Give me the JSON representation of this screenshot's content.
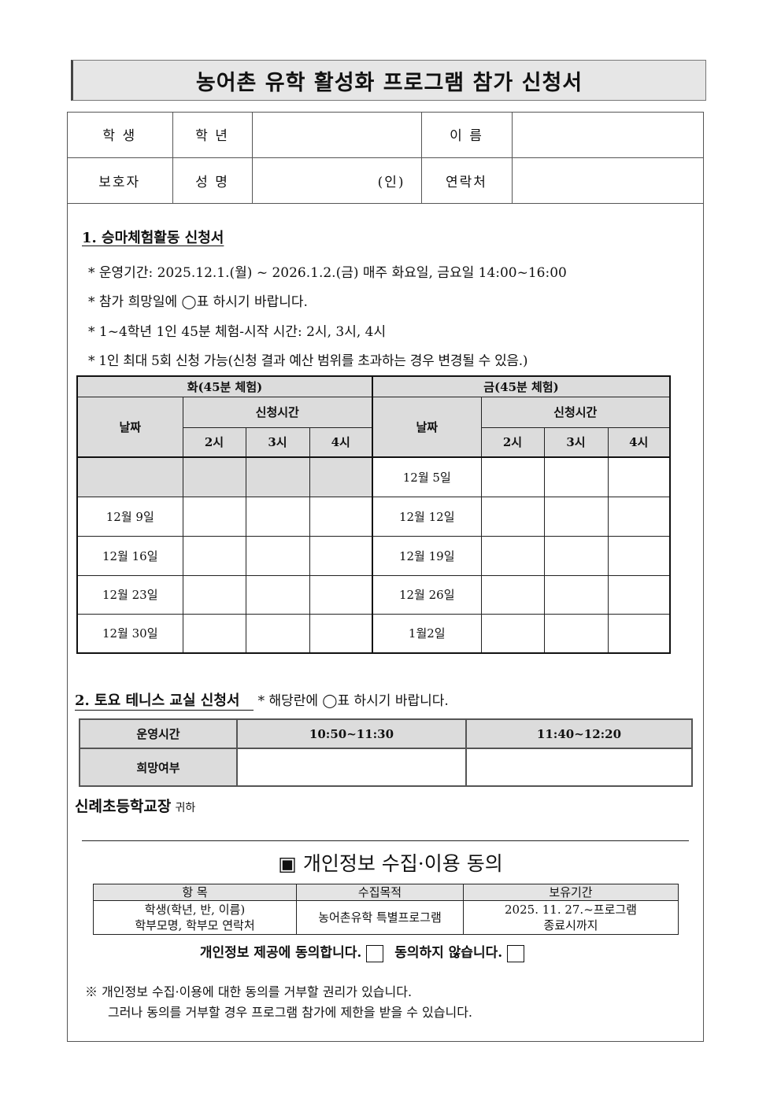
{
  "title": "농어촌 유학 활성화 프로그램 참가 신청서",
  "info": {
    "student": "학 생",
    "grade": "학 년",
    "name": "이 름",
    "guardian": "보호자",
    "guardian_name": "성 명",
    "seal": "(인)",
    "contact": "연락처"
  },
  "section1": {
    "heading": "1. 승마체험활동 신청서",
    "bullets": [
      "* 운영기간: 2025.12.1.(월) ~ 2026.1.2.(금) 매주 화요일, 금요일 14:00~16:00",
      "* 참가 희망일에 ◯표 하시기 바랍니다.",
      "* 1~4학년 1인 45분 체험-시작 시간: 2시, 3시, 4시",
      "* 1인 최대 5회 신청 가능(신청 결과 예산 범위를 초과하는 경우 변경될 수 있음.)"
    ],
    "tue_header": "화(45분 체험)",
    "fri_header": "금(45분 체험)",
    "date_label": "날짜",
    "time_label": "신청시간",
    "times": [
      "2시",
      "3시",
      "4시"
    ],
    "tue_dates": [
      "",
      "12월 9일",
      "12월 16일",
      "12월 23일",
      "12월 30일"
    ],
    "fri_dates": [
      "12월 5일",
      "12월 12일",
      "12월 19일",
      "12월 26일",
      "1월2일"
    ]
  },
  "section2": {
    "heading": "2. 토요 테니스 교실 신청서",
    "note": "* 해당란에 ◯표 하시기 바랍니다.",
    "time_label": "운영시간",
    "wish_label": "희망여부",
    "slots": [
      "10:50~11:30",
      "11:40~12:20"
    ]
  },
  "addressee": "신례초등학교장",
  "addressee_suffix": "귀하",
  "consent": {
    "title": "▣ 개인정보 수집·이용 동의",
    "headers": [
      "항 목",
      "수집목적",
      "보유기간"
    ],
    "item": [
      "학생(학년, 반, 이름)",
      "학부모명, 학부모 연락처"
    ],
    "purpose": "농어촌유학 특별프로그램",
    "period": [
      "2025. 11. 27.~프로그램",
      "종료시까지"
    ],
    "agree": "개인정보 제공에 동의합니다.",
    "disagree": "동의하지 않습니다.",
    "notes": [
      "※ 개인정보 수집·이용에 대한 동의를 거부할 권리가 있습니다.",
      "그러나 동의를 거부할 경우 프로그램 참가에 제한을 받을 수 있습니다."
    ]
  }
}
